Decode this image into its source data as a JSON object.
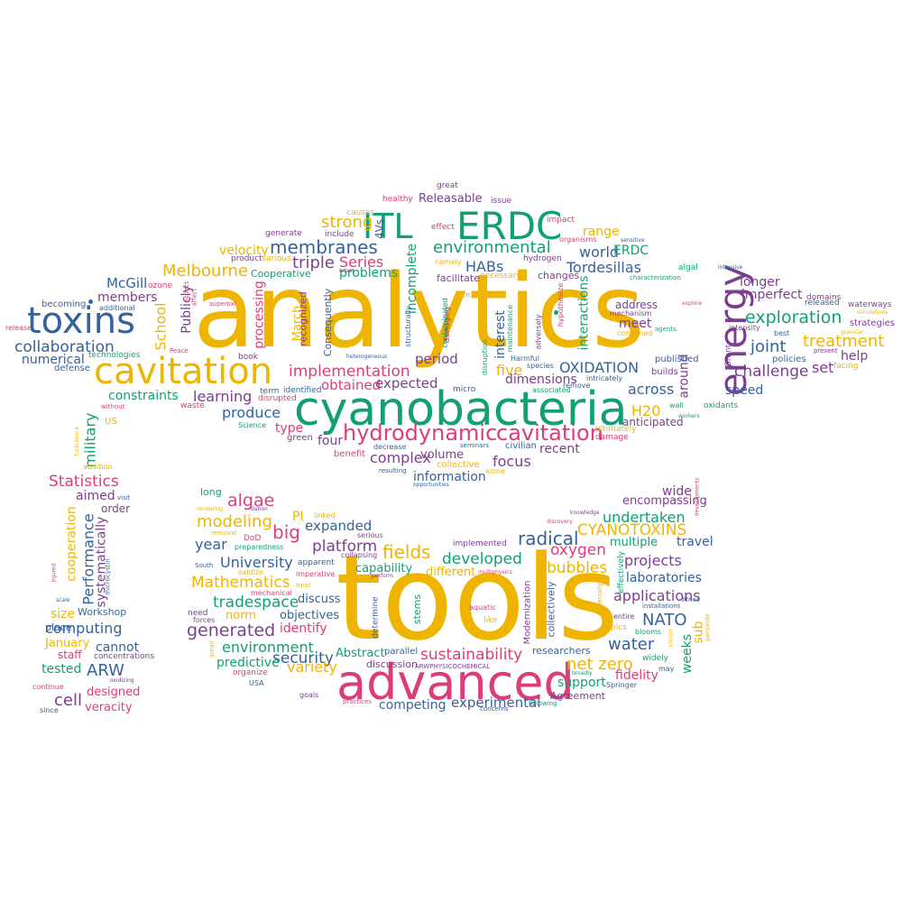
{
  "palette": {
    "yellow": "#efb400",
    "green": "#129f76",
    "blue": "#34629b",
    "purple": "#7c3e8f",
    "pink": "#dc3d7a"
  },
  "words": {
    "analytics": "analytics",
    "tools": "tools",
    "cyanobacteria": "cyanobacteria",
    "advanced": "advanced",
    "cavitation": "cavitation",
    "toxins": "toxins",
    "energy": "energy",
    "ITL": "ITL",
    "ERDC": "ERDC",
    "hydrodynamic": "hydrodynamic",
    "cavitation_2": "cavitation",
    "membranes": "membranes",
    "environmental": "environmental",
    "exploration": "exploration",
    "treatment": "treatment",
    "joint": "joint",
    "challenge": "challenge",
    "Melbourne": "Melbourne",
    "collaboration": "collaboration",
    "implementation": "implementation",
    "OXIDATION": "OXIDATION",
    "Tordesillas": "Tordesillas",
    "HABs": "HABs",
    "world": "world",
    "strong": "strong",
    "triple": "triple",
    "Series": "Series",
    "problems": "problems",
    "velocity": "velocity",
    "McGill": "McGill",
    "members": "members",
    "numerical": "numerical",
    "constraints": "constraints",
    "learning": "learning",
    "produce": "produce",
    "obtained": "obtained",
    "expected": "expected",
    "period": "period",
    "five": "five",
    "dimensions": "dimensions",
    "across": "across",
    "H20": "H20",
    "speed": "speed",
    "set": "set",
    "help": "help",
    "longer": "longer",
    "imperfect": "imperfect",
    "focus": "focus",
    "recent": "recent",
    "complex": "complex",
    "volume": "volume",
    "information": "information",
    "four": "four",
    "type": "type",
    "range": "range",
    "meet": "meet",
    "address": "address",
    "interactions": "interactions",
    "interest": "interest",
    "Statistics": "Statistics",
    "aimed": "aimed",
    "order": "order",
    "military": "military",
    "cooperation": "cooperation",
    "Performance": "Performance",
    "systematically": "systematically",
    "size": "size",
    "computing": "computing",
    "cannot": "cannot",
    "ARW": "ARW",
    "January": "January",
    "staff": "staff",
    "tested": "tested",
    "cell": "cell",
    "designed": "designed",
    "veracity": "veracity",
    "place": "place",
    "concentrations": "concentrations",
    "Workshop": "Workshop",
    "algae": "algae",
    "modeling": "modeling",
    "big": "big",
    "PI": "PI",
    "year": "year",
    "expanded": "expanded",
    "platform": "platform",
    "fields": "fields",
    "radical": "radical",
    "CYANOTOXINS": "CYANOTOXINS",
    "undertaken": "undertaken",
    "wide": "wide",
    "encompassing": "encompassing",
    "oxygen": "oxygen",
    "multiple": "multiple",
    "travel": "travel",
    "projects": "projects",
    "laboratories": "laboratories",
    "bubbles": "bubbles",
    "developed": "developed",
    "capability": "capability",
    "different": "different",
    "University": "University",
    "Mathematics": "Mathematics",
    "tradespace": "tradespace",
    "norm": "norm",
    "generated": "generated",
    "identify": "identify",
    "objectives": "objectives",
    "discuss": "discuss",
    "environment": "environment",
    "security": "security",
    "variety": "variety",
    "predictive": "predictive",
    "sustainability": "sustainability",
    "applications": "applications",
    "NATO": "NATO",
    "water": "water",
    "net_zero": "net zero",
    "fidelity": "fidelity",
    "support": "support",
    "experimental": "experimental",
    "competing": "competing",
    "Abstract": "Abstract",
    "discussion": "discussion",
    "researchers": "researchers",
    "weeks": "weeks",
    "sub": "sub",
    "Agreement": "Agreement",
    "ultimately": "ultimately",
    "anticipated": "anticipated",
    "School": "School",
    "Publicly": "Publicly",
    "processing": "processing",
    "March": "March",
    "recognized": "recognized",
    "Consequently": "Consequently",
    "incomplete": "incomplete",
    "4Vs": "4Vs",
    "Releasable": "Releasable",
    "Cooperative": "Cooperative",
    "facilitate": "facilitate",
    "changes": "changes",
    "around": "around",
    "oxidants": "oxidants",
    "published": "published",
    "policies": "policies",
    "released": "released",
    "strategies": "strategies",
    "facing": "facing",
    "waterways": "waterways",
    "domains": "domains",
    "builds": "builds",
    "damage": "damage",
    "civilian": "civilian",
    "collective": "collective",
    "benefit": "benefit",
    "green": "green",
    "Science": "Science",
    "waste": "waste",
    "term": "term",
    "disrupted": "disrupted",
    "identified": "identified",
    "book": "book",
    "defense": "defense",
    "technologies": "technologies",
    "sustainable": "sustainable",
    "becoming": "becoming",
    "additional": "additional",
    "ozone": "ozone",
    "product": "product",
    "various": "various",
    "generate": "generate",
    "take": "take",
    "include": "include",
    "causes": "causes",
    "healthy": "healthy",
    "great": "great",
    "issue": "issue",
    "effect": "effect",
    "impact": "impact",
    "organisms": "organisms",
    "hydrogen": "hydrogen",
    "namely": "namely",
    "necessary": "necessary",
    "algal": "algal",
    "characterization": "characterization",
    "mechanism": "mechanism",
    "intensity": "intensity",
    "combined": "combined",
    "agents": "agents",
    "best": "best",
    "present": "present",
    "Grant": "Grant",
    "wall": "wall",
    "workers": "workers",
    "remove": "remove",
    "associated": "associated",
    "species": "species",
    "intricately": "intricately",
    "Harmful": "Harmful",
    "maintenance": "maintenance",
    "adversely": "adversely",
    "hypothesize": "hypothesize",
    "cities": "cities",
    "contaminated": "contaminated",
    "damaging": "damaging",
    "structurally": "structurally",
    "disruption": "disruption",
    "micro": "micro",
    "seminars": "seminars",
    "alone": "alone",
    "decrease": "decrease",
    "resulting": "resulting",
    "opportunities": "opportunities",
    "US": "US",
    "without": "without",
    "addition": "addition",
    "turbulence": "turbulence",
    "visit": "visit",
    "microcystin": "microcystin",
    "scale": "scale",
    "injured": "injured",
    "oxidizing": "oxidizing",
    "continue": "continue",
    "since": "since",
    "long": "long",
    "rendering": "rendering",
    "removal": "removal",
    "DoD": "DoD",
    "preparedness": "preparedness",
    "oxidize": "oxidize",
    "South": "South",
    "mechanical": "mechanical",
    "forces": "forces",
    "need": "need",
    "small": "small",
    "organize": "organize",
    "USA": "USA",
    "goals": "goals",
    "practices": "practices",
    "concerns": "concerns",
    "following": "following",
    "Springer": "Springer",
    "broadly": "broadly",
    "may": "may",
    "widely": "widely",
    "blooms": "blooms",
    "installations": "installations",
    "entire": "entire",
    "topics": "topics",
    "Africa": "Africa",
    "peroxide": "peroxide",
    "vision": "vision",
    "especially": "especially",
    "effectively": "effectively",
    "collectively": "collectively",
    "Modernization": "Modernization",
    "like": "like",
    "aquatic": "aquatic",
    "stems": "stems",
    "parallel": "parallel",
    "determine": "determine",
    "multiphysics": "multiphysics",
    "perform": "perform",
    "collapsing": "collapsing",
    "implemented": "implemented",
    "serious": "serious",
    "apparent": "apparent",
    "imperative": "imperative",
    "heterogeneous": "heterogeneous",
    "linked": "linked",
    "knowledge": "knowledge",
    "discovery": "discovery",
    "developments": "developments",
    "ARWPHYSICOCHEMICAL": "ARWPHYSICOCHEMICAL",
    "treat": "treat",
    "dation": "dation",
    "Peace": "Peace",
    "affect": "affect",
    "aspect": "aspect",
    "superoxi": "superoxi",
    "latest": "latest",
    "explore": "explore",
    "release": "release",
    "simulations": "simulations",
    "granular": "granular",
    "intensive": "intensive",
    "sensitive": "sensitive"
  }
}
